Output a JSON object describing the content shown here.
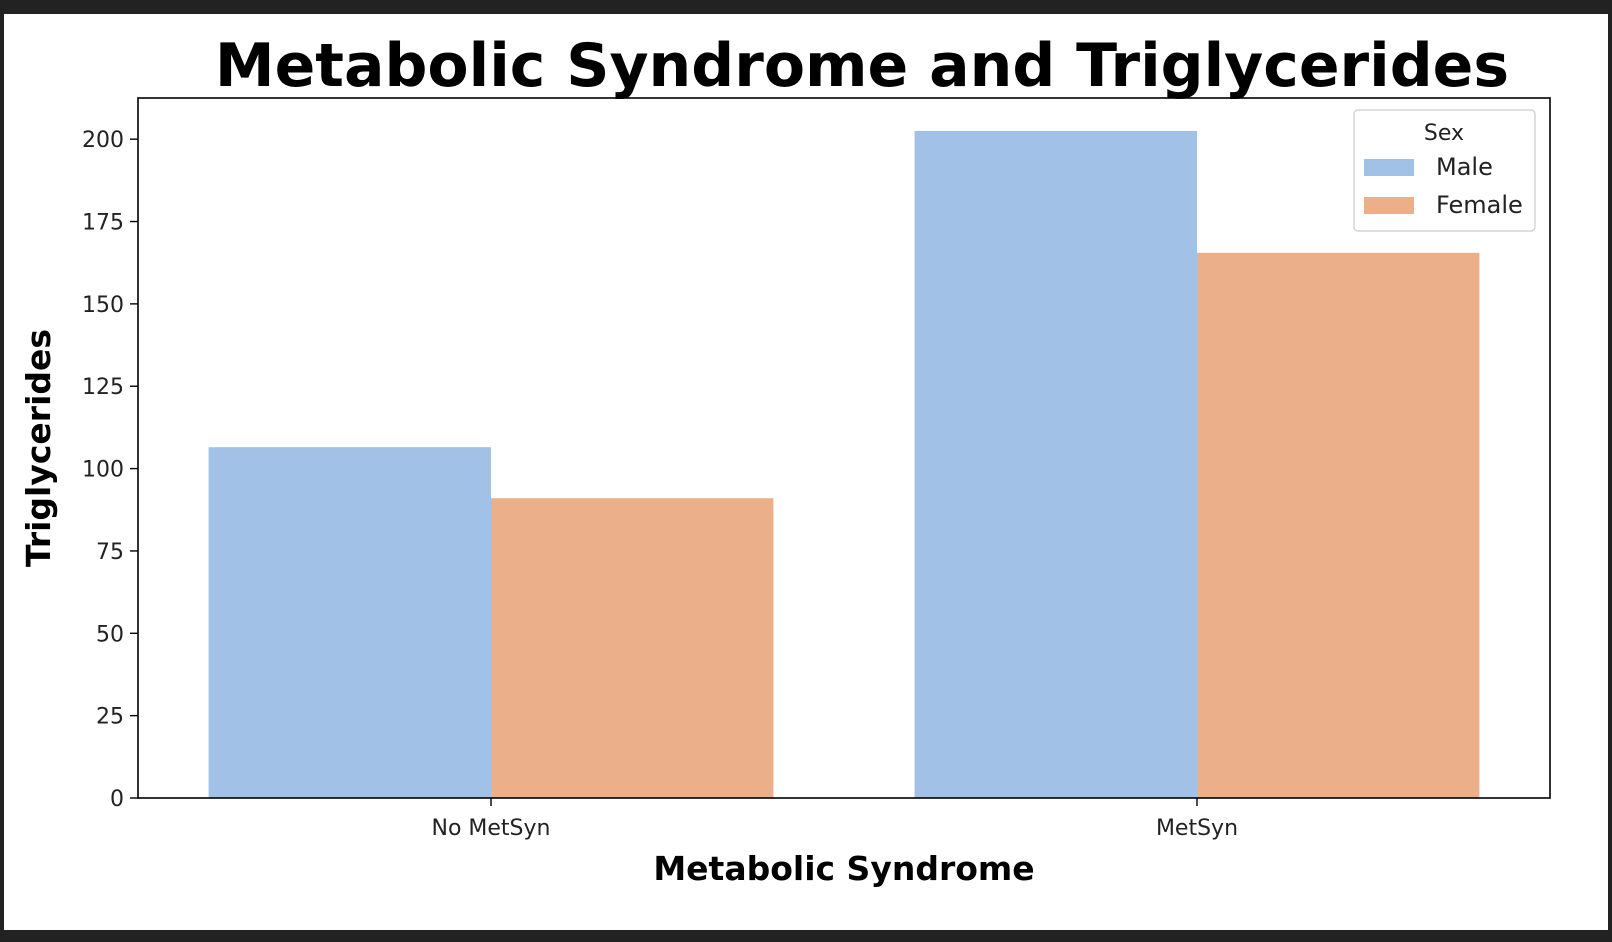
{
  "chart_data": {
    "type": "bar",
    "title": "Metabolic Syndrome and Triglycerides",
    "xlabel": "Metabolic Syndrome",
    "ylabel": "Triglycerides",
    "categories": [
      "No MetSyn",
      "MetSyn"
    ],
    "series": [
      {
        "name": "Male",
        "values": [
          106.5,
          202.5
        ],
        "color": "#a1c2e6"
      },
      {
        "name": "Female",
        "values": [
          91.0,
          165.5
        ],
        "color": "#ebaf89"
      }
    ],
    "ylim": [
      0,
      212.5
    ],
    "yticks": [
      0,
      25,
      50,
      75,
      100,
      125,
      150,
      175,
      200
    ],
    "legend": {
      "title": "Sex",
      "position": "top-right"
    },
    "grid": false
  }
}
